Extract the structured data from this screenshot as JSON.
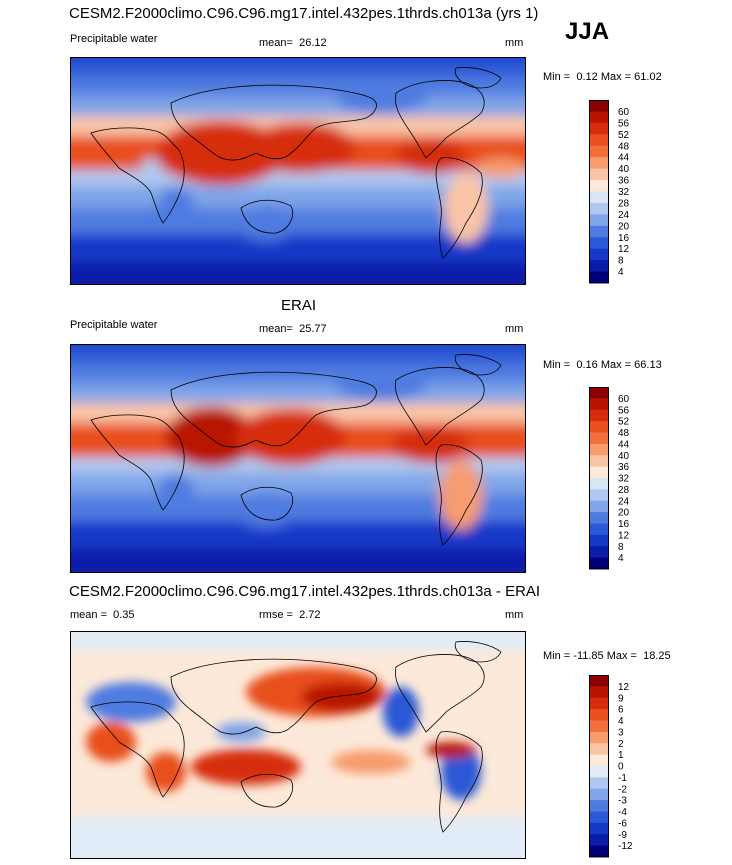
{
  "season": "JJA",
  "chart_data": [
    {
      "type": "heatmap",
      "title": "CESM2.F2000climo.C96.C96.mg17.intel.432pes.1thrds.ch013a (yrs 1)",
      "field": "Precipitable water",
      "units": "mm",
      "mean_label": "mean=",
      "mean": "26.12",
      "min_label": "Min =",
      "min": "0.12",
      "max_label": "Max =",
      "max": "61.02",
      "levels": [
        "60",
        "56",
        "52",
        "48",
        "44",
        "40",
        "36",
        "32",
        "28",
        "24",
        "20",
        "16",
        "12",
        "8",
        "4"
      ],
      "colors": [
        "#8b0000",
        "#b81500",
        "#d62d0c",
        "#e8501f",
        "#f2703c",
        "#f69c6e",
        "#fac5a6",
        "#fde9d9",
        "#d9e4f5",
        "#b0c8ef",
        "#7fa4e8",
        "#4f7be0",
        "#2c59d6",
        "#1638c8",
        "#0a1da8",
        "#00007a"
      ]
    },
    {
      "type": "heatmap",
      "title": "ERAI",
      "field": "Precipitable water",
      "units": "mm",
      "mean_label": "mean=",
      "mean": "25.77",
      "min_label": "Min =",
      "min": "0.16",
      "max_label": "Max =",
      "max": "66.13",
      "levels": [
        "60",
        "56",
        "52",
        "48",
        "44",
        "40",
        "36",
        "32",
        "28",
        "24",
        "20",
        "16",
        "12",
        "8",
        "4"
      ],
      "colors": [
        "#8b0000",
        "#b81500",
        "#d62d0c",
        "#e8501f",
        "#f2703c",
        "#f69c6e",
        "#fac5a6",
        "#fde9d9",
        "#d9e4f5",
        "#b0c8ef",
        "#7fa4e8",
        "#4f7be0",
        "#2c59d6",
        "#1638c8",
        "#0a1da8",
        "#00007a"
      ]
    },
    {
      "type": "heatmap",
      "title": "CESM2.F2000climo.C96.C96.mg17.intel.432pes.1thrds.ch013a - ERAI",
      "units": "mm",
      "mean_label": "mean =",
      "mean": "0.35",
      "rmse_label": "rmse =",
      "rmse": "2.72",
      "min_label": "Min =",
      "min": "-11.85",
      "max_label": "Max =",
      "max": "18.25",
      "levels": [
        "12",
        "9",
        "6",
        "4",
        "3",
        "2",
        "1",
        "0",
        "-1",
        "-2",
        "-3",
        "-4",
        "-6",
        "-9",
        "-12"
      ],
      "colors": [
        "#8b0000",
        "#b81500",
        "#d62d0c",
        "#e8501f",
        "#f2703c",
        "#f69c6e",
        "#fac5a6",
        "#fde9d9",
        "#e2ecf8",
        "#b0c8ef",
        "#7fa4e8",
        "#4f7be0",
        "#2c59d6",
        "#1638c8",
        "#0a1da8",
        "#00007a"
      ]
    }
  ]
}
